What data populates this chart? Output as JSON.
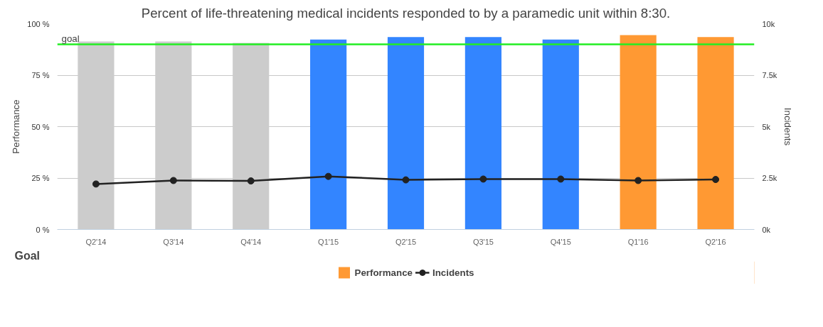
{
  "chart_data": {
    "type": "bar",
    "title": "Percent of life-threatening medical incidents responded to by a paramedic unit within 8:30.",
    "ylabel": "Performance",
    "y2label": "Incidents",
    "categories": [
      "Q2'14",
      "Q3'14",
      "Q4'14",
      "Q1'15",
      "Q2'15",
      "Q3'15",
      "Q4'15",
      "Q1'16",
      "Q2'16"
    ],
    "series": [
      {
        "name": "Performance",
        "color": "#ff9933",
        "colors": [
          "#cccccc",
          "#cccccc",
          "#cccccc",
          "#3385ff",
          "#3385ff",
          "#3385ff",
          "#3385ff",
          "#ff9933",
          "#ff9933"
        ],
        "values": [
          91.4,
          91.4,
          90.7,
          92.3,
          93.5,
          93.5,
          92.3,
          94.5,
          93.5
        ]
      },
      {
        "name": "Incidents",
        "type": "line",
        "axis": "y2",
        "color": "#222222",
        "marker": "circle",
        "values": [
          2210,
          2380,
          2360,
          2580,
          2410,
          2450,
          2450,
          2380,
          2430
        ]
      }
    ],
    "ylim": [
      0,
      100
    ],
    "yticks": [
      {
        "value": 0,
        "label": "0 %"
      },
      {
        "value": 25,
        "label": "25 %"
      },
      {
        "value": 50,
        "label": "50 %"
      },
      {
        "value": 75,
        "label": "75 %"
      },
      {
        "value": 100,
        "label": "100 %"
      }
    ],
    "y2lim": [
      0,
      10000
    ],
    "y2ticks": [
      {
        "value": 0,
        "label": "0k"
      },
      {
        "value": 2500,
        "label": "2.5k"
      },
      {
        "value": 5000,
        "label": "5k"
      },
      {
        "value": 7500,
        "label": "7.5k"
      },
      {
        "value": 10000,
        "label": "10k"
      }
    ],
    "ref_lines": [
      {
        "axis": "y",
        "value": 90,
        "label": "goal",
        "color": "#22ee22"
      }
    ],
    "annotations": [
      "Goal"
    ],
    "grid": "y",
    "legend": "bottom"
  }
}
